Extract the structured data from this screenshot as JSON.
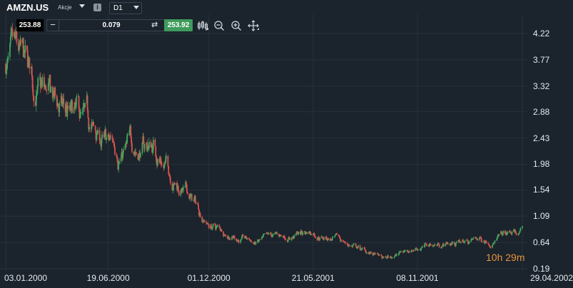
{
  "header": {
    "symbol": "AMZN.US",
    "symbol_type": "Akcje",
    "info_icon": "info-icon",
    "timeframe": "D1"
  },
  "trade_bar": {
    "sell_price": "253.88",
    "minus": "−",
    "quantity": "0.079",
    "swap_icon": "⇄",
    "plus": "+",
    "buy_price": "253.92"
  },
  "toolbar": {
    "icons": [
      "chart-type-icon",
      "zoom-out-icon",
      "zoom-in-icon",
      "move-icon"
    ]
  },
  "timer": "10h 29m",
  "colors": {
    "background": "#1b232c",
    "up": "#3fa85f",
    "down": "#d9534f",
    "buy": "#3f9b5c",
    "timer": "#e8953a",
    "grid": "#28323d"
  },
  "chart_data": {
    "type": "candlestick",
    "title": "",
    "grid": true,
    "y_axis": {
      "position": "right",
      "ticks": [
        "4.22",
        "3.77",
        "3.32",
        "2.88",
        "2.43",
        "1.98",
        "1.54",
        "1.09",
        "0.64",
        "0.19"
      ],
      "range": [
        0.19,
        4.22
      ]
    },
    "x_axis": {
      "ticks": [
        "03.01.2000",
        "19.06.2000",
        "01.12.2000",
        "21.05.2001",
        "08.11.2001",
        "29.04.2002"
      ]
    },
    "close_trend": [
      [
        "03.01.2000",
        3.7
      ],
      [
        "15.02.2000",
        3.2
      ],
      [
        "19.06.2000",
        2.2
      ],
      [
        "01.09.2000",
        2.3
      ],
      [
        "01.12.2000",
        0.95
      ],
      [
        "15.02.2001",
        0.62
      ],
      [
        "21.05.2001",
        0.85
      ],
      [
        "15.09.2001",
        0.35
      ],
      [
        "08.11.2001",
        0.58
      ],
      [
        "15.02.2002",
        0.68
      ],
      [
        "29.04.2002",
        0.8
      ]
    ]
  }
}
